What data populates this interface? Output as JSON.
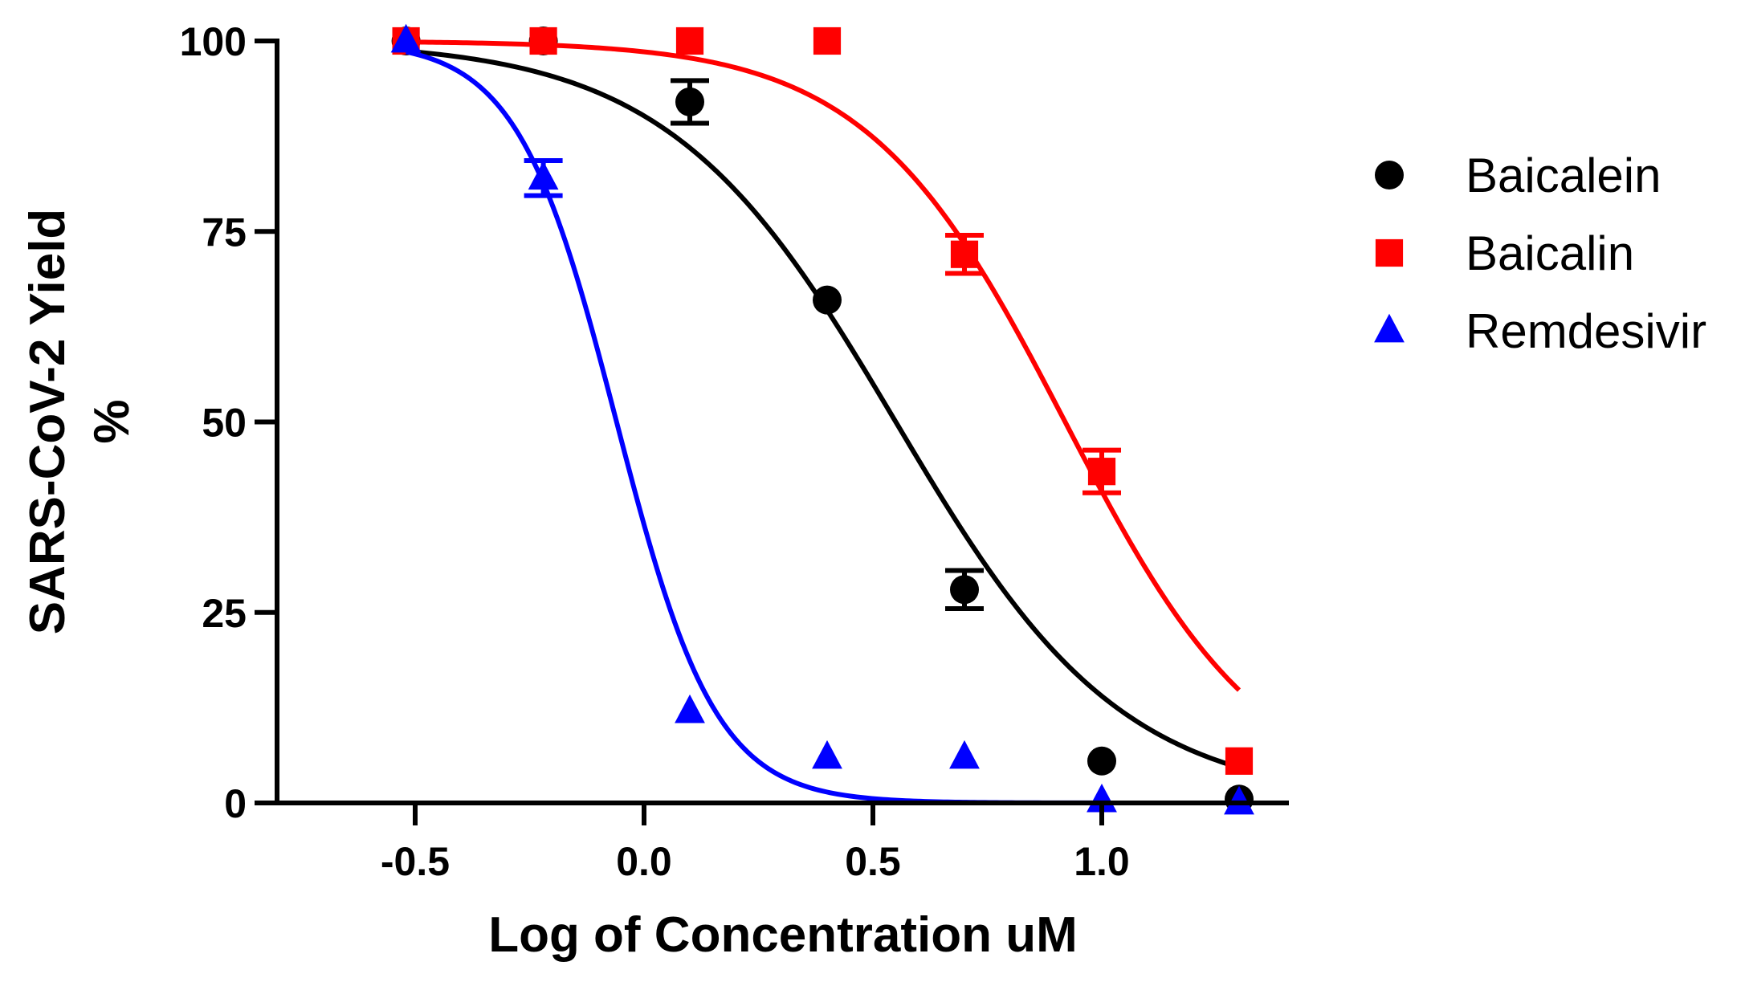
{
  "chart_data": {
    "type": "scatter",
    "xlabel": "Log of Concentration uM",
    "ylabel": "SARS-CoV-2 Yield",
    "ylabel_unit": "%",
    "xlim": [
      -0.8,
      1.4
    ],
    "ylim": [
      0,
      100
    ],
    "x_ticks": [
      -0.5,
      0.0,
      0.5,
      1.0
    ],
    "x_tick_labels": [
      "-0.5",
      "0.0",
      "0.5",
      "1.0"
    ],
    "y_ticks": [
      0,
      25,
      50,
      75,
      100
    ],
    "y_tick_labels": [
      "0",
      "25",
      "50",
      "75",
      "100"
    ],
    "grid": false,
    "legend_position": "right",
    "series": [
      {
        "name": "Baicalein",
        "color": "#000000",
        "marker": "circle",
        "x": [
          -0.52,
          -0.22,
          0.1,
          0.4,
          0.7,
          1.0,
          1.3
        ],
        "y": [
          100,
          100,
          92,
          66,
          28,
          5.5,
          0.5
        ],
        "error": [
          0,
          0,
          2.8,
          0,
          2.5,
          0,
          0
        ],
        "curve": {
          "top": 100,
          "bottom": 0,
          "log_ic50": 0.55,
          "hill_slope": -1.75
        }
      },
      {
        "name": "Baicalin",
        "color": "#ff0000",
        "marker": "square",
        "x": [
          -0.52,
          -0.22,
          0.1,
          0.4,
          0.7,
          1.0,
          1.3
        ],
        "y": [
          100,
          100,
          100,
          100,
          72,
          43.5,
          5.5
        ],
        "error": [
          0,
          0,
          0,
          0,
          2.5,
          2.8,
          0
        ],
        "curve": {
          "top": 100,
          "bottom": 0,
          "log_ic50": 0.92,
          "hill_slope": -2.0
        }
      },
      {
        "name": "Remdesivir",
        "color": "#0000ff",
        "marker": "triangle",
        "x": [
          -0.52,
          -0.22,
          0.1,
          0.4,
          0.7,
          1.0,
          1.3
        ],
        "y": [
          100,
          82,
          12,
          6,
          6,
          0.3,
          0
        ],
        "error": [
          0,
          2.3,
          0,
          0,
          0,
          0,
          0
        ],
        "curve": {
          "top": 100,
          "bottom": 0,
          "log_ic50": -0.06,
          "hill_slope": -4.0
        }
      }
    ]
  }
}
